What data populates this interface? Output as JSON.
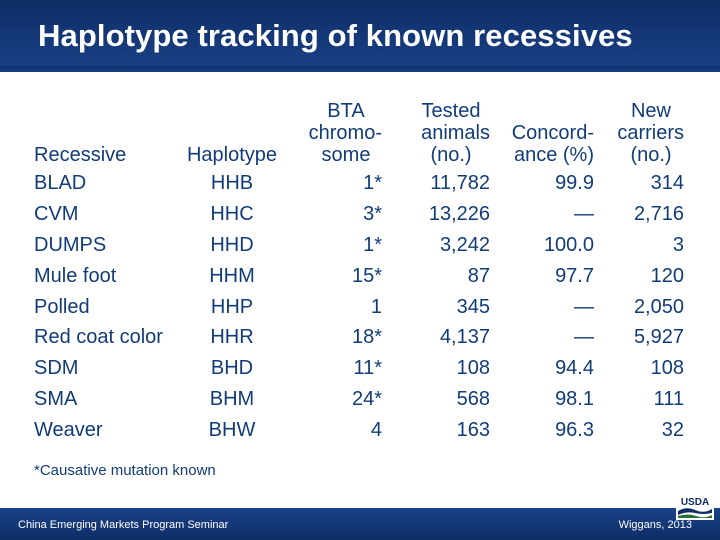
{
  "slide": {
    "title": "Haplotype tracking of known recessives",
    "footnote": "*Causative mutation known",
    "footer_left": "China Emerging Markets Program Seminar",
    "footer_right": "Wiggans, 2013",
    "logo_text": "USDA"
  },
  "table": {
    "headers": {
      "recessive": [
        "Recessive"
      ],
      "haplotype": [
        "Haplotype"
      ],
      "bta": [
        "BTA",
        "chromo-",
        "some"
      ],
      "tested": [
        "Tested",
        "animals",
        "(no.)"
      ],
      "concordance": [
        "Concord-",
        "ance (%)"
      ],
      "new_carriers": [
        "New",
        "carriers",
        "(no.)"
      ]
    },
    "rows": [
      {
        "recessive": "BLAD",
        "haplotype": "HHB",
        "bta": "1*",
        "tested": "11,782",
        "concordance": "99.9",
        "new_carriers": "314"
      },
      {
        "recessive": "CVM",
        "haplotype": "HHC",
        "bta": "3*",
        "tested": "13,226",
        "concordance": "—",
        "new_carriers": "2,716"
      },
      {
        "recessive": "DUMPS",
        "haplotype": "HHD",
        "bta": "1*",
        "tested": "3,242",
        "concordance": "100.0",
        "new_carriers": "3"
      },
      {
        "recessive": "Mule foot",
        "haplotype": "HHM",
        "bta": "15*",
        "tested": "87",
        "concordance": "97.7",
        "new_carriers": "120"
      },
      {
        "recessive": "Polled",
        "haplotype": "HHP",
        "bta": "1",
        "tested": "345",
        "concordance": "—",
        "new_carriers": "2,050"
      },
      {
        "recessive": "Red coat color",
        "haplotype": "HHR",
        "bta": "18*",
        "tested": "4,137",
        "concordance": "—",
        "new_carriers": "5,927"
      },
      {
        "recessive": "SDM",
        "haplotype": "BHD",
        "bta": "11*",
        "tested": "108",
        "concordance": "94.4",
        "new_carriers": "108"
      },
      {
        "recessive": "SMA",
        "haplotype": "BHM",
        "bta": "24*",
        "tested": "568",
        "concordance": "98.1",
        "new_carriers": "111"
      },
      {
        "recessive": "Weaver",
        "haplotype": "BHW",
        "bta": "4",
        "tested": "163",
        "concordance": "96.3",
        "new_carriers": "32"
      }
    ]
  },
  "colors": {
    "title_bar": "#15397a",
    "text": "#123c78",
    "white": "#ffffff"
  }
}
